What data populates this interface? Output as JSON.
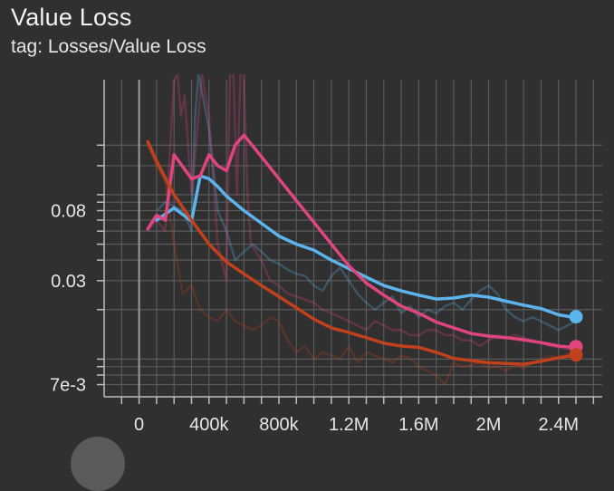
{
  "title": "Value Loss",
  "subtitle": "tag: Losses/Value Loss",
  "colors": {
    "background": "#303030",
    "grid": "#5a5a5a",
    "axis": "#bdbdbd",
    "blue": "#5cb4ec",
    "pink": "#e0457d",
    "orange": "#c0411c"
  },
  "chart_data": {
    "type": "line",
    "title": "Value Loss",
    "xlabel": "",
    "ylabel": "",
    "x_scale": "linear",
    "y_scale": "log",
    "xlim": [
      -200000,
      2650000
    ],
    "ylim": [
      0.0059,
      0.5
    ],
    "x_ticks": [
      {
        "value": 0,
        "label": "0"
      },
      {
        "value": 400000,
        "label": "400k"
      },
      {
        "value": 800000,
        "label": "800k"
      },
      {
        "value": 1200000,
        "label": "1.2M"
      },
      {
        "value": 1600000,
        "label": "1.6M"
      },
      {
        "value": 2000000,
        "label": "2M"
      },
      {
        "value": 2400000,
        "label": "2.4M"
      }
    ],
    "y_tick_labels": [
      {
        "value": 0.08,
        "label": "0.08"
      },
      {
        "value": 0.03,
        "label": "0.03"
      },
      {
        "value": 0.007,
        "label": "7e-3"
      }
    ],
    "y_minor_ticks": [
      0.2,
      0.15,
      0.1,
      0.09,
      0.07,
      0.06,
      0.05,
      0.04,
      0.02,
      0.01,
      0.009,
      0.008
    ],
    "grid": true,
    "series": [
      {
        "color": "#5cb4ec",
        "smoothed": {
          "x": [
            100000,
            200000,
            300000,
            350000,
            400000,
            450000,
            500000,
            600000,
            700000,
            800000,
            900000,
            1000000,
            1100000,
            1200000,
            1300000,
            1400000,
            1500000,
            1600000,
            1700000,
            1800000,
            1900000,
            2000000,
            2100000,
            2200000,
            2300000,
            2400000,
            2480000,
            2500000
          ],
          "y": [
            0.07,
            0.083,
            0.069,
            0.13,
            0.125,
            0.112,
            0.098,
            0.08,
            0.067,
            0.056,
            0.05,
            0.046,
            0.04,
            0.0355,
            0.0315,
            0.028,
            0.026,
            0.0245,
            0.0232,
            0.0235,
            0.0245,
            0.0238,
            0.0225,
            0.0213,
            0.0203,
            0.0186,
            0.018,
            0.0181
          ],
          "end_value": 0.0181
        },
        "raw": {
          "x": [
            100000,
            150000,
            200000,
            250000,
            300000,
            320000,
            340000,
            400000,
            450000,
            500000,
            550000,
            600000,
            650000,
            700000,
            750000,
            800000,
            850000,
            900000,
            950000,
            1000000,
            1050000,
            1100000,
            1150000,
            1200000,
            1250000,
            1300000,
            1350000,
            1400000,
            1450000,
            1500000,
            1550000,
            1600000,
            1650000,
            1700000,
            1750000,
            1800000,
            1850000,
            1900000,
            1950000,
            2000000,
            2050000,
            2100000,
            2150000,
            2200000,
            2250000,
            2300000,
            2350000,
            2400000,
            2450000,
            2500000
          ],
          "y": [
            0.08,
            0.09,
            0.085,
            0.08,
            0.06,
            0.3,
            0.55,
            0.25,
            0.08,
            0.06,
            0.04,
            0.045,
            0.05,
            0.045,
            0.04,
            0.038,
            0.035,
            0.033,
            0.032,
            0.028,
            0.026,
            0.032,
            0.036,
            0.03,
            0.025,
            0.022,
            0.02,
            0.022,
            0.024,
            0.019,
            0.021,
            0.018,
            0.02,
            0.019,
            0.021,
            0.022,
            0.02,
            0.023,
            0.026,
            0.028,
            0.025,
            0.02,
            0.018,
            0.017,
            0.018,
            0.017,
            0.016,
            0.015,
            0.016,
            0.017
          ]
        }
      },
      {
        "color": "#e0457d",
        "smoothed": {
          "x": [
            50000,
            100000,
            150000,
            200000,
            300000,
            350000,
            400000,
            450000,
            500000,
            550000,
            600000,
            700000,
            800000,
            900000,
            1000000,
            1100000,
            1200000,
            1300000,
            1400000,
            1500000,
            1600000,
            1700000,
            1800000,
            1900000,
            2000000,
            2100000,
            2200000,
            2300000,
            2400000,
            2480000,
            2500000
          ],
          "y": [
            0.062,
            0.075,
            0.07,
            0.175,
            0.125,
            0.13,
            0.175,
            0.15,
            0.14,
            0.2,
            0.23,
            0.17,
            0.125,
            0.092,
            0.068,
            0.05,
            0.037,
            0.029,
            0.0245,
            0.021,
            0.019,
            0.0168,
            0.0155,
            0.0143,
            0.0138,
            0.0135,
            0.0131,
            0.0126,
            0.012,
            0.0118,
            0.0119
          ],
          "end_value": 0.0119
        },
        "raw": {
          "x": [
            50000,
            100000,
            150000,
            200000,
            220000,
            240000,
            260000,
            300000,
            340000,
            360000,
            380000,
            400000,
            450000,
            500000,
            520000,
            540000,
            560000,
            580000,
            600000,
            620000,
            640000,
            700000,
            750000,
            800000,
            850000,
            900000,
            950000,
            1000000,
            1050000,
            1100000,
            1150000,
            1200000,
            1250000,
            1300000,
            1350000,
            1400000,
            1450000,
            1500000,
            1550000,
            1600000,
            1650000,
            1700000,
            1750000,
            1800000,
            1850000,
            1900000,
            1950000,
            2000000,
            2050000,
            2100000,
            2150000,
            2200000,
            2250000,
            2300000,
            2350000,
            2400000,
            2450000,
            2500000
          ],
          "y": [
            0.06,
            0.07,
            0.06,
            0.5,
            0.6,
            0.3,
            0.4,
            0.1,
            0.3,
            0.6,
            0.4,
            0.3,
            0.05,
            0.03,
            0.6,
            0.6,
            0.1,
            0.6,
            0.6,
            0.1,
            0.05,
            0.04,
            0.03,
            0.028,
            0.025,
            0.024,
            0.023,
            0.022,
            0.02,
            0.019,
            0.018,
            0.017,
            0.016,
            0.015,
            0.017,
            0.016,
            0.015,
            0.015,
            0.014,
            0.014,
            0.015,
            0.015,
            0.014,
            0.014,
            0.013,
            0.013,
            0.012,
            0.013,
            0.014,
            0.0135,
            0.014,
            0.0135,
            0.013,
            0.0125,
            0.012,
            0.0118,
            0.0115,
            0.0112
          ]
        }
      },
      {
        "color": "#c0411c",
        "smoothed": {
          "x": [
            50000,
            100000,
            200000,
            300000,
            400000,
            500000,
            600000,
            700000,
            800000,
            900000,
            1000000,
            1100000,
            1200000,
            1300000,
            1400000,
            1500000,
            1600000,
            1700000,
            1800000,
            1900000,
            2000000,
            2100000,
            2200000,
            2300000,
            2400000,
            2480000,
            2500000
          ],
          "y": [
            0.21,
            0.16,
            0.1,
            0.07,
            0.05,
            0.039,
            0.033,
            0.028,
            0.024,
            0.0205,
            0.0175,
            0.0155,
            0.0145,
            0.0135,
            0.0125,
            0.012,
            0.0118,
            0.011,
            0.0101,
            0.0098,
            0.0095,
            0.0094,
            0.0093,
            0.0097,
            0.0102,
            0.0105,
            0.0106
          ],
          "end_value": 0.0106
        },
        "raw": {
          "x": [
            50000,
            100000,
            150000,
            200000,
            250000,
            300000,
            350000,
            400000,
            450000,
            500000,
            550000,
            600000,
            650000,
            700000,
            750000,
            800000,
            850000,
            900000,
            950000,
            1000000,
            1050000,
            1100000,
            1150000,
            1200000,
            1250000,
            1300000,
            1350000,
            1400000,
            1450000,
            1500000,
            1550000,
            1600000,
            1650000,
            1700000,
            1750000,
            1800000,
            1850000,
            1900000,
            1950000,
            2000000,
            2050000,
            2100000,
            2150000,
            2200000,
            2250000,
            2300000,
            2350000,
            2400000,
            2450000,
            2500000
          ],
          "y": [
            0.2,
            0.15,
            0.12,
            0.05,
            0.025,
            0.028,
            0.02,
            0.018,
            0.017,
            0.02,
            0.017,
            0.016,
            0.015,
            0.016,
            0.018,
            0.017,
            0.013,
            0.011,
            0.012,
            0.01,
            0.011,
            0.0105,
            0.01,
            0.012,
            0.0095,
            0.011,
            0.0105,
            0.01,
            0.0095,
            0.0105,
            0.0102,
            0.009,
            0.0085,
            0.008,
            0.007,
            0.0095,
            0.009,
            0.0092,
            0.0095,
            0.0088,
            0.009,
            0.0085,
            0.0092,
            0.0088,
            0.0095,
            0.01,
            0.0105,
            0.0102,
            0.0108,
            0.011
          ]
        }
      }
    ]
  }
}
